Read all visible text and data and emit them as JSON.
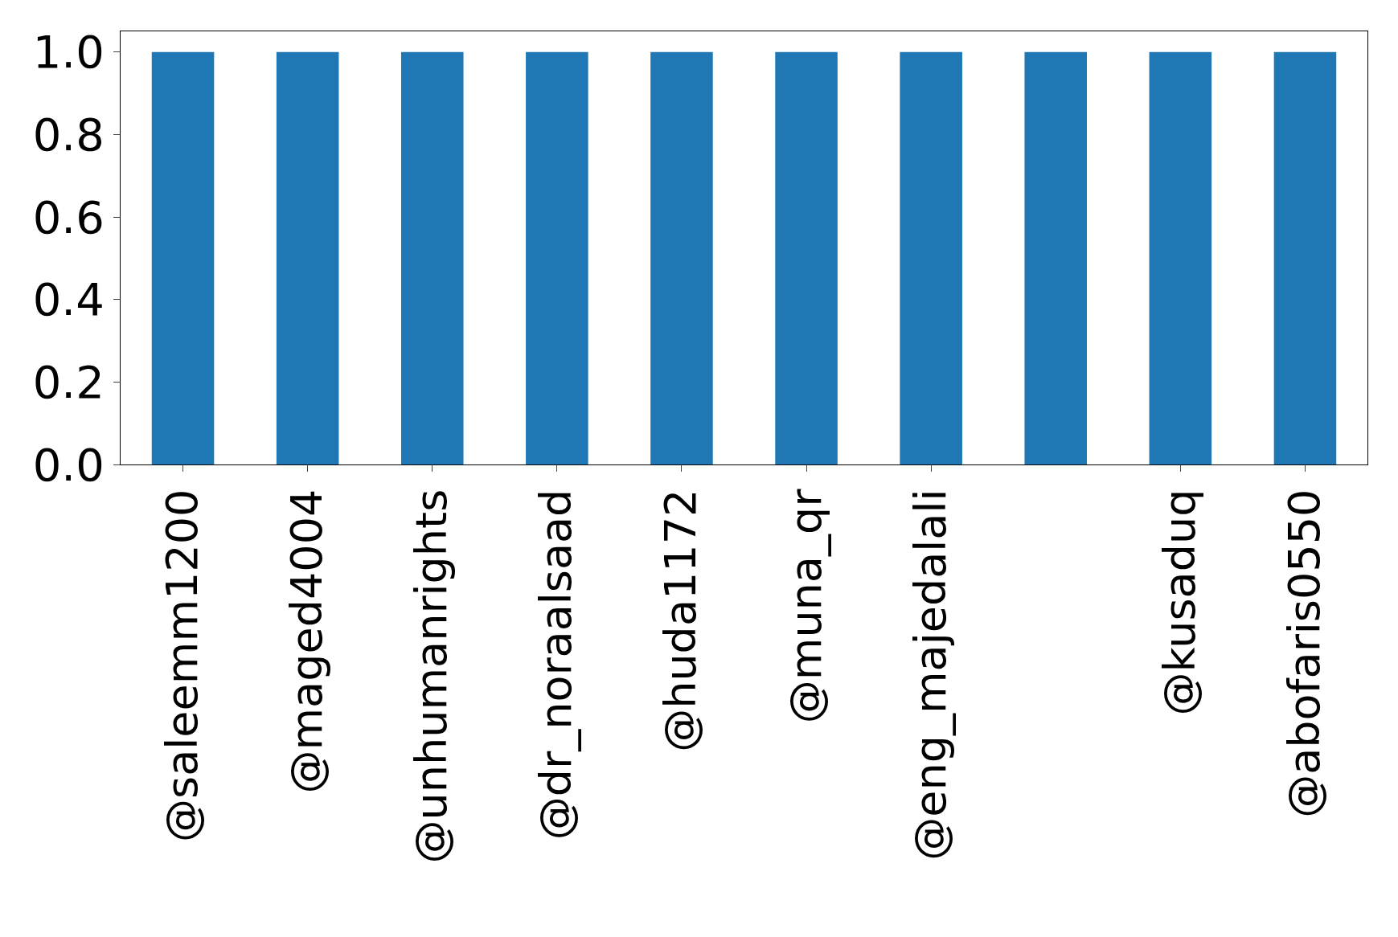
{
  "chart_data": {
    "type": "bar",
    "categories": [
      "@saleemm1200",
      "@maged4004",
      "@unhumanrights",
      "@dr_noraalsaad",
      "@huda1172",
      "@muna_qr",
      "@eng_majedalali",
      null,
      "@kusaduq",
      "@abofaris0550"
    ],
    "values": [
      1,
      1,
      1,
      1,
      1,
      1,
      1,
      1,
      1,
      1
    ],
    "color": "#1f77b4",
    "ylim": [
      0,
      1.05
    ],
    "yticks": [
      {
        "value": 0,
        "label": "0.0"
      },
      {
        "value": 0.2,
        "label": "0.2"
      },
      {
        "value": 0.4,
        "label": "0.4"
      },
      {
        "value": 0.6,
        "label": "0.6"
      },
      {
        "value": 0.8,
        "label": "0.8"
      },
      {
        "value": 1,
        "label": "1.0"
      }
    ],
    "grid": false
  }
}
